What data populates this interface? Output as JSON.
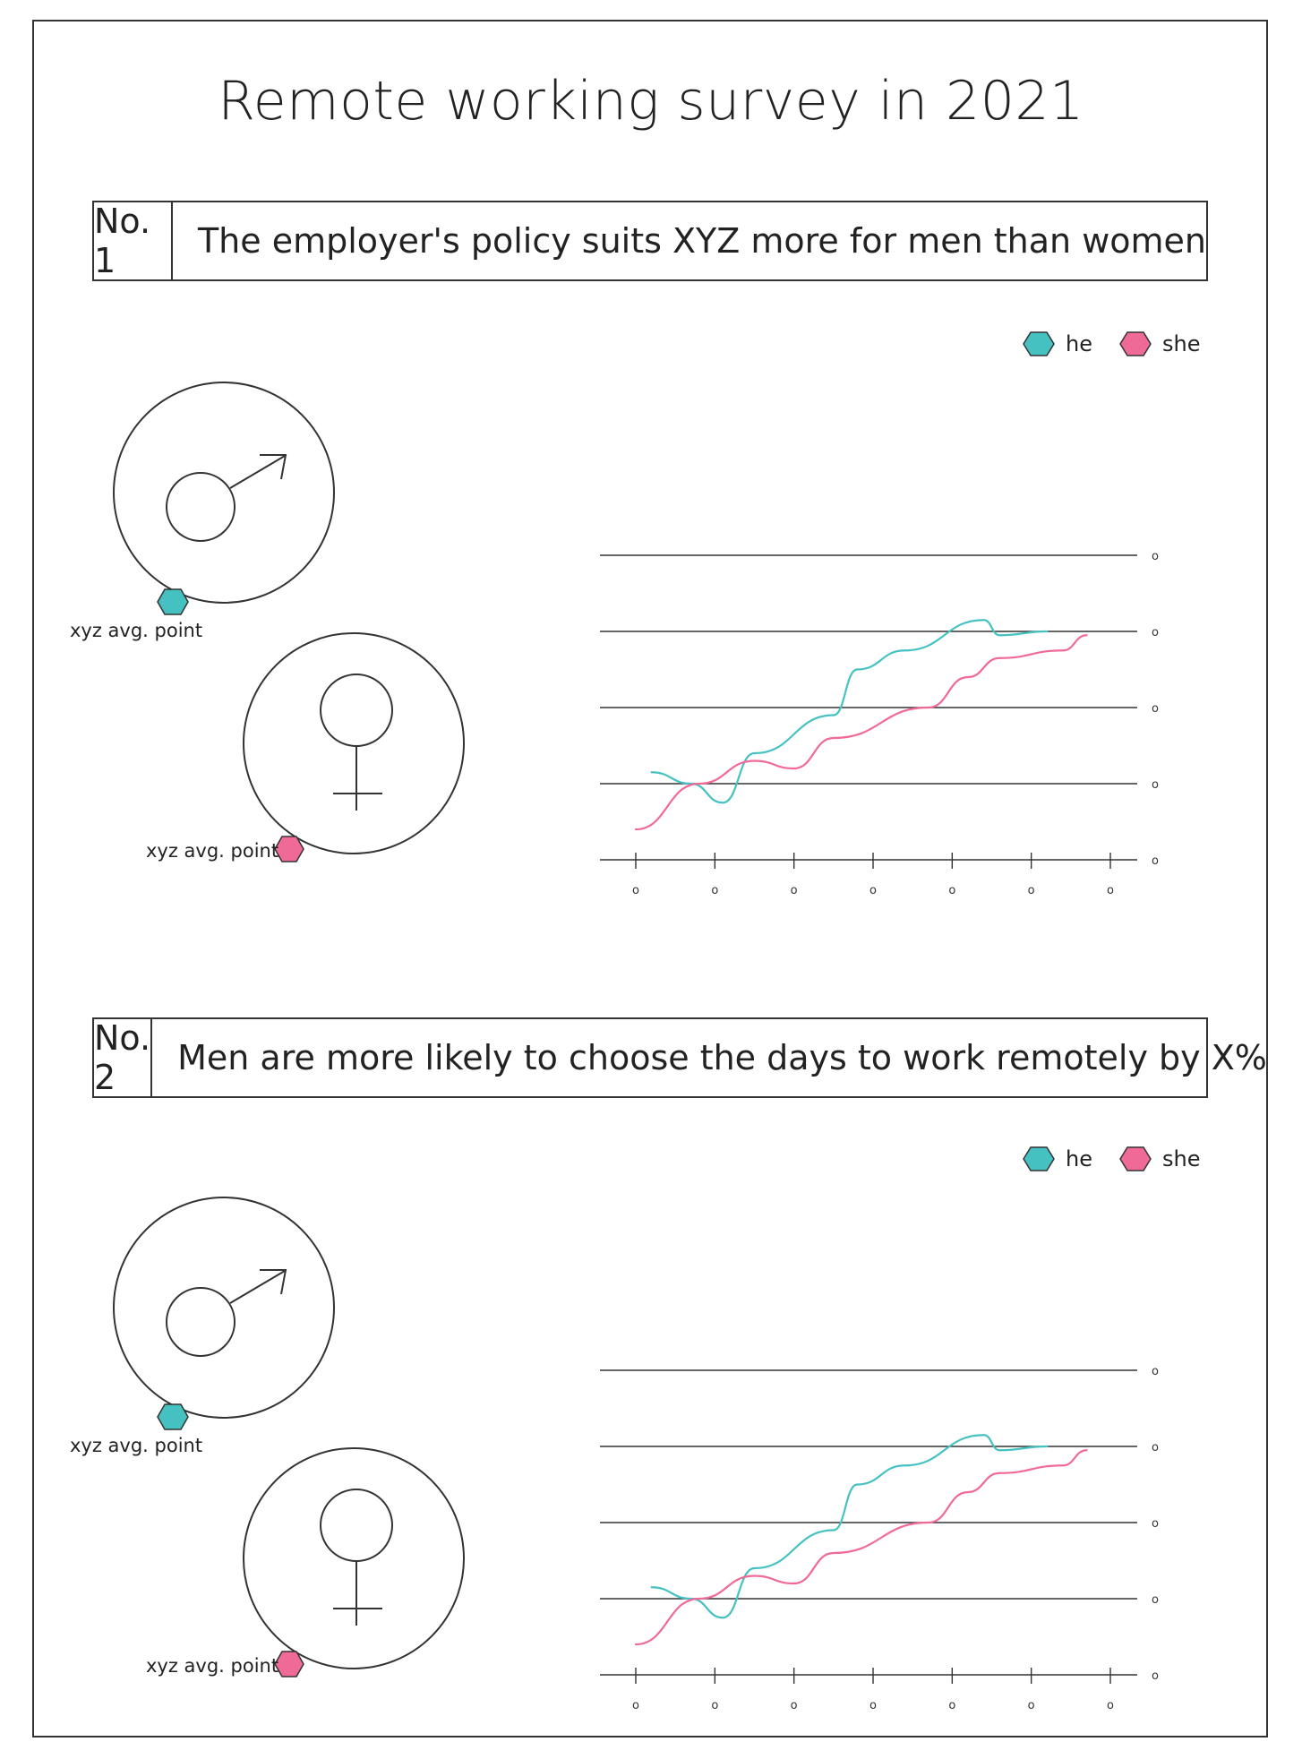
{
  "title": "Remote working survey in 2021",
  "sections": [
    {
      "number": "No. 1",
      "heading": "The employer's policy suits XYZ more for men than women",
      "legend": {
        "he": "he",
        "she": "she"
      },
      "male_label": "xyz avg. point",
      "female_label": "xyz avg. point"
    },
    {
      "number": "No. 2",
      "heading": "Men are more likely to choose the days to work remotely by X%",
      "legend": {
        "he": "he",
        "she": "she"
      },
      "male_label": "xyz avg. point",
      "female_label": "xyz avg. point"
    }
  ],
  "colors": {
    "he": "#46c1c1",
    "she": "#f06a98",
    "ink": "#333333"
  },
  "icons": {
    "male": "male-symbol-icon",
    "female": "female-symbol-icon",
    "marker": "hexagon-icon"
  },
  "chart_data": [
    {
      "type": "line",
      "x_ticks": [
        "o",
        "o",
        "o",
        "o",
        "o",
        "o",
        "o"
      ],
      "y_ticks": [
        "o",
        "o",
        "o",
        "o",
        "o"
      ],
      "xlim": [
        0,
        6
      ],
      "ylim": [
        0,
        4
      ],
      "grid": true,
      "legend_position": "top-right",
      "series": [
        {
          "name": "he",
          "color": "#46c1c1",
          "x": [
            0.2,
            0.7,
            1.1,
            1.5,
            2.5,
            2.8,
            3.4,
            4.4,
            4.6,
            5.2
          ],
          "y": [
            1.15,
            1.0,
            0.75,
            1.4,
            1.9,
            2.5,
            2.75,
            3.15,
            2.95,
            3.0
          ]
        },
        {
          "name": "she",
          "color": "#f06a98",
          "x": [
            0.0,
            0.8,
            1.5,
            2.0,
            2.5,
            3.7,
            4.2,
            4.6,
            5.4,
            5.7
          ],
          "y": [
            0.4,
            1.0,
            1.3,
            1.2,
            1.6,
            2.0,
            2.4,
            2.65,
            2.75,
            2.95
          ]
        }
      ]
    },
    {
      "type": "line",
      "x_ticks": [
        "o",
        "o",
        "o",
        "o",
        "o",
        "o",
        "o"
      ],
      "y_ticks": [
        "o",
        "o",
        "o",
        "o",
        "o"
      ],
      "xlim": [
        0,
        6
      ],
      "ylim": [
        0,
        4
      ],
      "grid": true,
      "legend_position": "top-right",
      "series": [
        {
          "name": "he",
          "color": "#46c1c1",
          "x": [
            0.2,
            0.7,
            1.1,
            1.5,
            2.5,
            2.8,
            3.4,
            4.4,
            4.6,
            5.2
          ],
          "y": [
            1.15,
            1.0,
            0.75,
            1.4,
            1.9,
            2.5,
            2.75,
            3.15,
            2.95,
            3.0
          ]
        },
        {
          "name": "she",
          "color": "#f06a98",
          "x": [
            0.0,
            0.8,
            1.5,
            2.0,
            2.5,
            3.7,
            4.2,
            4.6,
            5.4,
            5.7
          ],
          "y": [
            0.4,
            1.0,
            1.3,
            1.2,
            1.6,
            2.0,
            2.4,
            2.65,
            2.75,
            2.95
          ]
        }
      ]
    }
  ]
}
